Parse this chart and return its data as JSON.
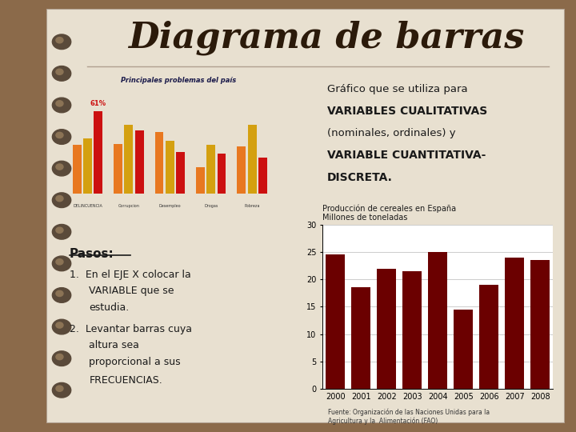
{
  "title": "Diagrama de barras",
  "title_fontsize": 32,
  "title_color": "#2b1a0a",
  "title_font": "serif",
  "bg_outer": "#8B6A4A",
  "bg_inner": "#e8e0d0",
  "bar_years": [
    "2000",
    "2001",
    "2002",
    "2003",
    "2004",
    "2005",
    "2006",
    "2007",
    "2008"
  ],
  "bar_values": [
    24.5,
    18.5,
    22.0,
    21.5,
    25.0,
    14.5,
    19.0,
    24.0,
    23.5
  ],
  "bar_color": "#6b0000",
  "chart_title_line1": "Producción de cereales en España",
  "chart_title_line2": "Millones de toneladas",
  "chart_ylim": [
    0,
    30
  ],
  "chart_yticks": [
    0,
    5,
    10,
    15,
    20,
    25,
    30
  ],
  "chart_source": "Fuente: Organización de las Naciones Unidas para la\nAgricultura y la  Alimentación (FAO)",
  "right_text_line1": "Gráfico que se utiliza para",
  "right_text_bold1": "VARIABLES CUALITATIVAS",
  "right_text_line2": "(nominales, ordinales) y",
  "right_text_bold2": "VARIABLE CUANTITATIVA-",
  "right_text_bold3": "DISCRETA.",
  "pasos_title": "Pasos:",
  "spiral_color": "#5a4a3a",
  "notebook_line_color": "#c8b89a",
  "img_bg": "#b8d4e8",
  "img_title": "Principales problemas del país",
  "categories": [
    "DELINCUENCIA",
    "Corrupcion",
    "Desempleo",
    "Drogas",
    "Pobreza"
  ],
  "vals_2008": [
    36,
    37,
    46,
    20,
    35
  ],
  "vals_2010": [
    41,
    51,
    39,
    36,
    51
  ],
  "vals_2012": [
    61,
    47,
    31,
    30,
    27
  ],
  "bar_colors_img": [
    "#e87820",
    "#d4a010",
    "#cc1010"
  ]
}
